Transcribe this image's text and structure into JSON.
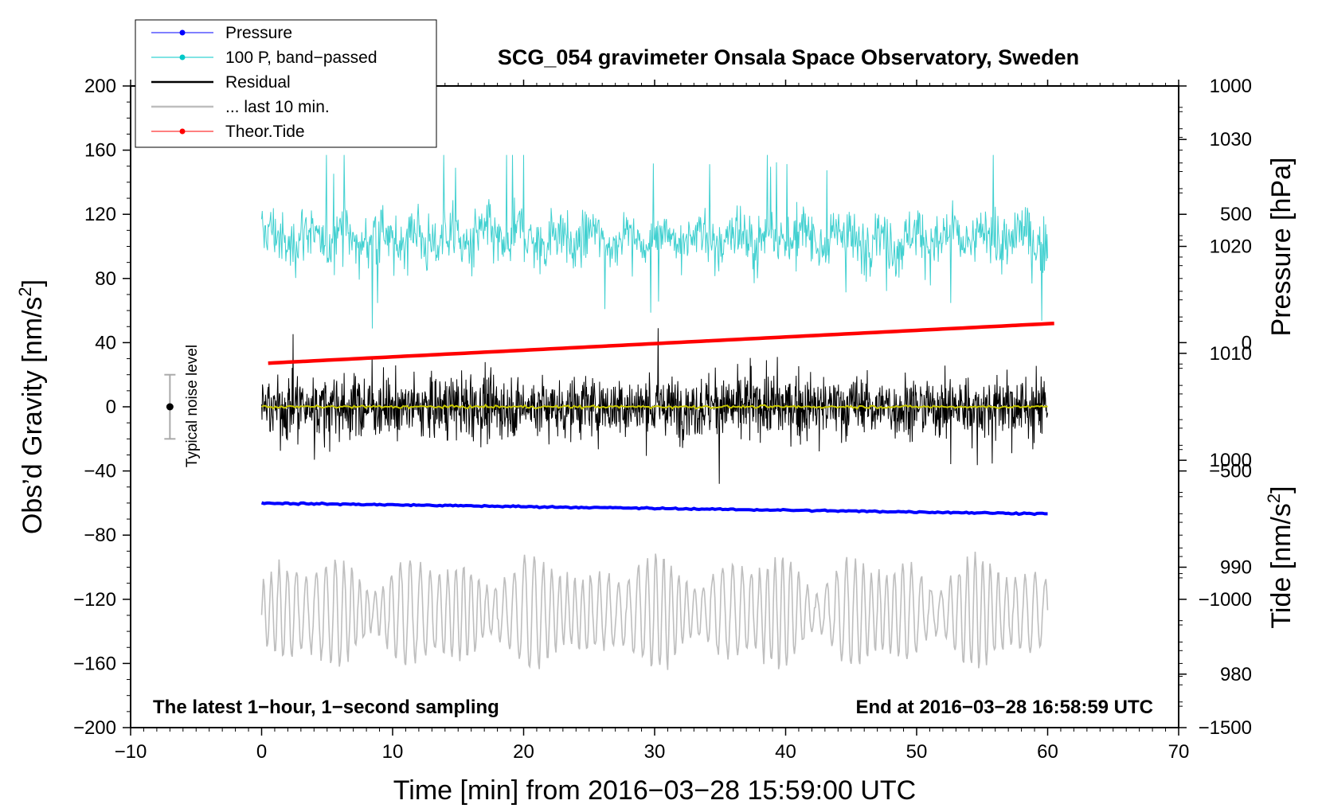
{
  "chart_data": {
    "type": "line",
    "title": "SCG_054 gravimeter Onsala Space Observatory, Sweden",
    "xlabel": "Time [min] from 2016−03−28 15:59:00 UTC",
    "ylabel_left_main": "Obs’d Gravity [nm/s",
    "ylabel_left_sup": "2",
    "ylabel_left_end": "]",
    "ylabel_right_pressure": "Pressure [hPa]",
    "ylabel_right_tide_main": "Tide [nm/s",
    "ylabel_right_tide_sup": "2",
    "ylabel_right_tide_end": "]",
    "xlim": [
      -10,
      70
    ],
    "ylim": [
      -200,
      200
    ],
    "pressure_axis_range": [
      975,
      1035
    ],
    "tide_axis_range": [
      -1500,
      1000
    ],
    "x_ticks": [
      "−10",
      "0",
      "10",
      "20",
      "30",
      "40",
      "50",
      "60",
      "70"
    ],
    "y_ticks": [
      "200",
      "160",
      "120",
      "80",
      "40",
      "0",
      "−40",
      "−80",
      "−120",
      "−160",
      "−200"
    ],
    "pressure_ticks": [
      "1030",
      "1020",
      "1010",
      "1000",
      "990",
      "980"
    ],
    "tide_ticks": [
      "1000",
      "500",
      "0",
      "−500",
      "−1000",
      "−1500"
    ],
    "legend": [
      {
        "label": "Pressure",
        "color": "#0000ff",
        "marker": true
      },
      {
        "label": "100 P, band−passed",
        "color": "#00c8c8",
        "marker": true
      },
      {
        "label": "Residual",
        "color": "#000000",
        "marker": false
      },
      {
        "label": "... last 10 min.",
        "color": "#bebebe",
        "marker": false
      },
      {
        "label": "Theor.Tide",
        "color": "#ff0000",
        "marker": true
      }
    ],
    "series": [
      {
        "name": "Pressure",
        "color": "#0000ff",
        "x_range": [
          0,
          60
        ],
        "start_hpa": 996.0,
        "end_hpa": 995.0
      },
      {
        "name": "100 P, band−passed",
        "color": "#40d0d0",
        "x_range": [
          0,
          60
        ],
        "center_gravity": 105,
        "range_gravity": [
          45,
          157
        ]
      },
      {
        "name": "Residual",
        "color": "#000000",
        "x_range": [
          0,
          60
        ],
        "center_gravity": 0,
        "range_gravity": [
          -52,
          55
        ]
      },
      {
        "name": "Residual smoothed",
        "color": "#c8c800",
        "x_range": [
          0,
          60
        ],
        "center_gravity": 0
      },
      {
        "name": "... last 10 min.",
        "color": "#bebebe",
        "x_range": [
          0,
          60
        ],
        "center_gravity": -128,
        "range_gravity": [
          -170,
          -76
        ]
      },
      {
        "name": "Theor.Tide",
        "color": "#ff0000",
        "x_range": [
          0.5,
          60.5
        ],
        "start_tide": -80,
        "end_tide": 75
      }
    ],
    "noise_indicator": {
      "label": "Typical noise level",
      "x": -7,
      "center": 0,
      "half_range": 20
    },
    "footer_left": "The latest 1−hour, 1−second sampling",
    "footer_right": "End at 2016−03−28 16:58:59 UTC"
  }
}
